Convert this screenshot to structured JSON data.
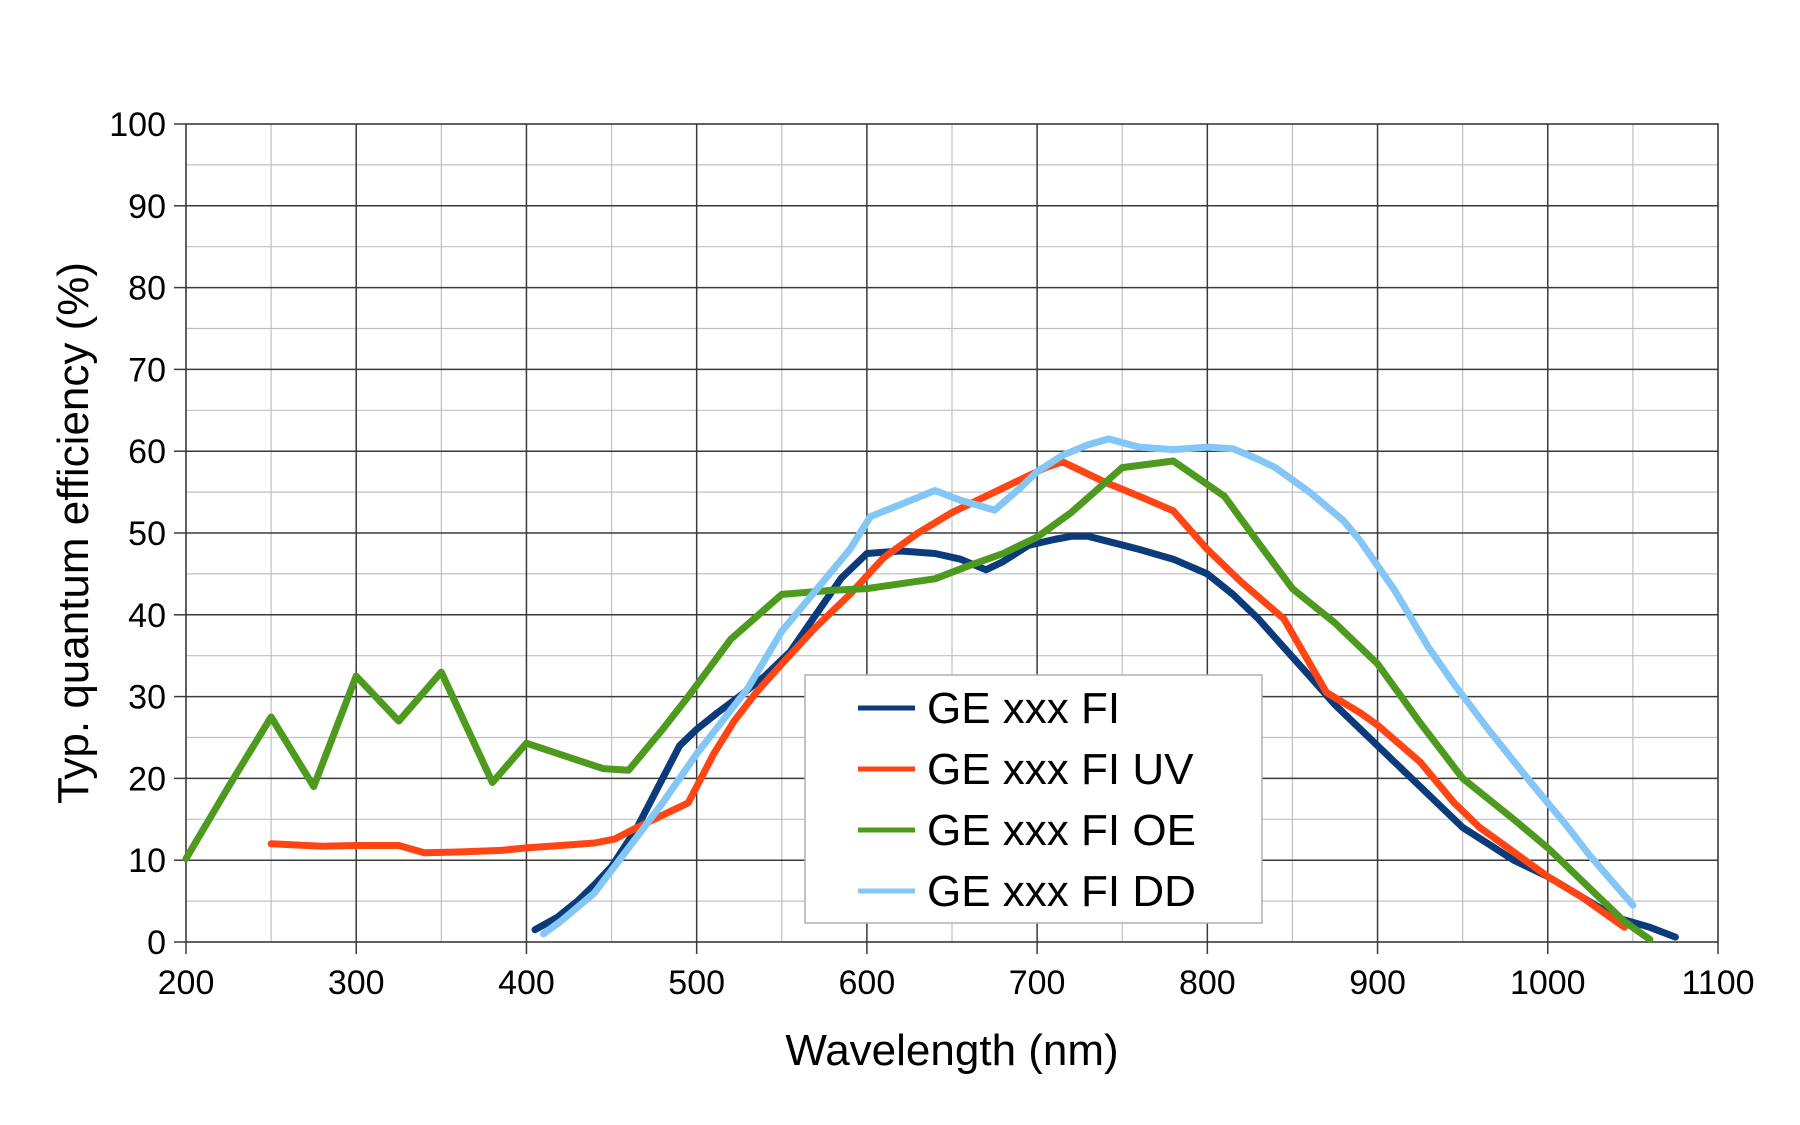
{
  "chart_data": {
    "type": "line",
    "title": "",
    "xlabel": "Wavelength (nm)",
    "ylabel": "Typ. quantum efficiency (%)",
    "xlim": [
      200,
      1100
    ],
    "ylim": [
      0,
      100
    ],
    "xticks": [
      "200",
      "300",
      "400",
      "500",
      "600",
      "700",
      "800",
      "900",
      "1000",
      "1100"
    ],
    "yticks": [
      "0",
      "10",
      "20",
      "30",
      "40",
      "50",
      "60",
      "70",
      "80",
      "90",
      "100"
    ],
    "grid": true,
    "legend_position": "center-bottom",
    "series": [
      {
        "name": "GE xxx FI",
        "color": "#0b3b7a",
        "points": [
          [
            405,
            1.5
          ],
          [
            418,
            3
          ],
          [
            430,
            5
          ],
          [
            440,
            7
          ],
          [
            450,
            9.2
          ],
          [
            465,
            14
          ],
          [
            480,
            20
          ],
          [
            490,
            24
          ],
          [
            500,
            26
          ],
          [
            512,
            28
          ],
          [
            525,
            30
          ],
          [
            540,
            32.5
          ],
          [
            555,
            35.5
          ],
          [
            570,
            40
          ],
          [
            585,
            44.5
          ],
          [
            600,
            47.5
          ],
          [
            620,
            47.8
          ],
          [
            640,
            47.5
          ],
          [
            655,
            46.8
          ],
          [
            670,
            45.5
          ],
          [
            680,
            46.5
          ],
          [
            695,
            48.5
          ],
          [
            710,
            49.2
          ],
          [
            720,
            49.6
          ],
          [
            730,
            49.6
          ],
          [
            745,
            48.8
          ],
          [
            760,
            48
          ],
          [
            780,
            46.8
          ],
          [
            800,
            45
          ],
          [
            815,
            42.5
          ],
          [
            830,
            39.5
          ],
          [
            845,
            36
          ],
          [
            860,
            32.5
          ],
          [
            875,
            29
          ],
          [
            890,
            26
          ],
          [
            905,
            23
          ],
          [
            920,
            20
          ],
          [
            935,
            17
          ],
          [
            950,
            14
          ],
          [
            965,
            12
          ],
          [
            980,
            10
          ],
          [
            1000,
            8
          ],
          [
            1020,
            5.5
          ],
          [
            1040,
            3
          ],
          [
            1060,
            1.8
          ],
          [
            1075,
            0.6
          ]
        ]
      },
      {
        "name": "GE xxx FI UV",
        "color": "#ff4514",
        "points": [
          [
            250,
            12
          ],
          [
            280,
            11.7
          ],
          [
            300,
            11.8
          ],
          [
            325,
            11.8
          ],
          [
            340,
            10.9
          ],
          [
            360,
            11
          ],
          [
            385,
            11.2
          ],
          [
            400,
            11.5
          ],
          [
            420,
            11.8
          ],
          [
            440,
            12.1
          ],
          [
            452,
            12.6
          ],
          [
            465,
            14
          ],
          [
            480,
            15.5
          ],
          [
            495,
            17
          ],
          [
            510,
            23
          ],
          [
            522,
            27
          ],
          [
            535,
            30.5
          ],
          [
            550,
            34
          ],
          [
            570,
            38.5
          ],
          [
            590,
            42.5
          ],
          [
            610,
            47
          ],
          [
            630,
            50
          ],
          [
            650,
            52.5
          ],
          [
            670,
            54.5
          ],
          [
            690,
            56.5
          ],
          [
            705,
            58
          ],
          [
            715,
            58.7
          ],
          [
            740,
            56.2
          ],
          [
            760,
            54.5
          ],
          [
            780,
            52.7
          ],
          [
            800,
            48
          ],
          [
            820,
            44
          ],
          [
            845,
            39.5
          ],
          [
            870,
            30.5
          ],
          [
            890,
            28
          ],
          [
            900,
            26.5
          ],
          [
            925,
            22
          ],
          [
            945,
            17
          ],
          [
            960,
            14
          ],
          [
            980,
            11
          ],
          [
            1000,
            8
          ],
          [
            1020,
            5.5
          ],
          [
            1045,
            1.8
          ]
        ]
      },
      {
        "name": "GE xxx FI OE",
        "color": "#4e9a1f",
        "points": [
          [
            200,
            10.2
          ],
          [
            225,
            19
          ],
          [
            250,
            27.5
          ],
          [
            275,
            19
          ],
          [
            300,
            32.5
          ],
          [
            325,
            27
          ],
          [
            350,
            33
          ],
          [
            380,
            19.5
          ],
          [
            400,
            24.3
          ],
          [
            445,
            21.2
          ],
          [
            460,
            21
          ],
          [
            480,
            26
          ],
          [
            495,
            30
          ],
          [
            520,
            37
          ],
          [
            550,
            42.5
          ],
          [
            580,
            43
          ],
          [
            600,
            43.2
          ],
          [
            620,
            43.8
          ],
          [
            640,
            44.4
          ],
          [
            660,
            46
          ],
          [
            680,
            47.5
          ],
          [
            700,
            49.5
          ],
          [
            720,
            52.5
          ],
          [
            750,
            58
          ],
          [
            780,
            58.8
          ],
          [
            810,
            54.5
          ],
          [
            830,
            48.8
          ],
          [
            850,
            43.2
          ],
          [
            875,
            39
          ],
          [
            900,
            34
          ],
          [
            925,
            26.8
          ],
          [
            950,
            20
          ],
          [
            980,
            15
          ],
          [
            1000,
            11.5
          ],
          [
            1030,
            5.5
          ],
          [
            1045,
            2.5
          ],
          [
            1060,
            0.3
          ]
        ]
      },
      {
        "name": "GE xxx FI DD",
        "color": "#84c7f6",
        "points": [
          [
            410,
            1
          ],
          [
            420,
            2.5
          ],
          [
            440,
            6
          ],
          [
            460,
            11.5
          ],
          [
            480,
            17
          ],
          [
            500,
            23
          ],
          [
            515,
            27
          ],
          [
            530,
            31
          ],
          [
            550,
            38
          ],
          [
            570,
            43
          ],
          [
            590,
            48
          ],
          [
            602,
            52
          ],
          [
            620,
            53.5
          ],
          [
            640,
            55.2
          ],
          [
            655,
            54
          ],
          [
            675,
            52.8
          ],
          [
            690,
            55.5
          ],
          [
            700,
            57.5
          ],
          [
            715,
            59.5
          ],
          [
            730,
            60.8
          ],
          [
            742,
            61.5
          ],
          [
            760,
            60.5
          ],
          [
            780,
            60.2
          ],
          [
            800,
            60.5
          ],
          [
            815,
            60.3
          ],
          [
            830,
            59
          ],
          [
            840,
            58
          ],
          [
            860,
            55
          ],
          [
            880,
            51.5
          ],
          [
            890,
            49
          ],
          [
            910,
            43
          ],
          [
            930,
            36
          ],
          [
            945,
            31.5
          ],
          [
            965,
            26
          ],
          [
            990,
            19.5
          ],
          [
            1010,
            14.5
          ],
          [
            1025,
            10.5
          ],
          [
            1050,
            4.5
          ]
        ]
      }
    ]
  }
}
